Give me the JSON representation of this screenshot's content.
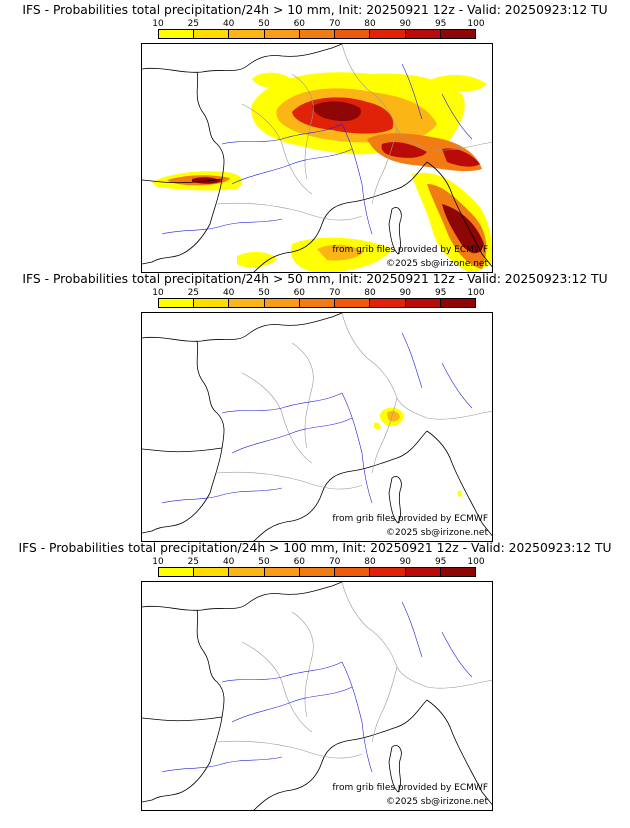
{
  "colorbar": {
    "ticks": [
      "10",
      "25",
      "40",
      "50",
      "60",
      "70",
      "80",
      "90",
      "95",
      "100"
    ],
    "colors": [
      "#ffff00",
      "#ffdc00",
      "#fbb615",
      "#f99c1a",
      "#f27c14",
      "#ee5a0c",
      "#e02208",
      "#bb0b08",
      "#8e0605",
      "#5e0303"
    ]
  },
  "panels": [
    {
      "title": "IFS - Probabilities total precipitation/24h > 10 mm, Init: 20250921 12z - Valid: 20250923:12 TU",
      "source_credit": "from grib files provided by ECMWF",
      "copyright": "©2025 sb@irizone.net"
    },
    {
      "title": "IFS - Probabilities total precipitation/24h > 50 mm, Init: 20250921 12z - Valid: 20250923:12 TU",
      "source_credit": "from grib files provided by ECMWF",
      "copyright": "©2025 sb@irizone.net"
    },
    {
      "title": "IFS - Probabilities total precipitation/24h > 100 mm, Init: 20250921 12z - Valid: 20250923:12 TU",
      "source_credit": "from grib files provided by ECMWF",
      "copyright": "©2025 sb@irizone.net"
    }
  ],
  "map_colors": {
    "coast": "#000000",
    "border": "#999999",
    "river": "#2020e0"
  }
}
